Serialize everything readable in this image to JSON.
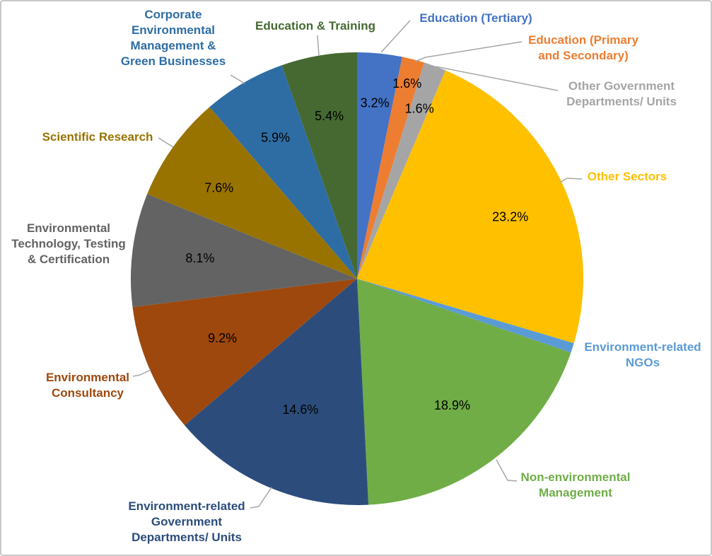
{
  "chart_data": {
    "type": "pie",
    "title": "",
    "orientation": "starts at 12 o'clock, clockwise",
    "legend": "none (direct colored category labels with gray leader lines)",
    "background_color": "#FFFFFF",
    "canvas_border_color": "#C9C9C9",
    "pct_label_color": "#000000",
    "leader_line_color": "#A6A6A6",
    "note": "NGO slice has no percentage data label shown; value estimated as remainder (0.7%)",
    "slices": [
      {
        "label": "Education (Tertiary)",
        "value": 3.2,
        "pct_label": "3.2%",
        "color": "#4472C4"
      },
      {
        "label": "Education (Primary\nand Secondary)",
        "value": 1.6,
        "pct_label": "1.6%",
        "color": "#ED7D31"
      },
      {
        "label": "Other Government\nDepartments/ Units",
        "value": 1.6,
        "pct_label": "1.6%",
        "color": "#A5A5A5"
      },
      {
        "label": "Other Sectors",
        "value": 23.2,
        "pct_label": "23.2%",
        "color": "#FFC000"
      },
      {
        "label": "Environment-related\nNGOs",
        "value": 0.7,
        "pct_label": "",
        "color": "#5B9BD5"
      },
      {
        "label": "Non-environmental\nManagement",
        "value": 18.9,
        "pct_label": "18.9%",
        "color": "#70AD47"
      },
      {
        "label": "Environment-related\nGovernment\nDepartments/ Units",
        "value": 14.6,
        "pct_label": "14.6%",
        "color": "#2C4D7C"
      },
      {
        "label": "Environmental\nConsultancy",
        "value": 9.2,
        "pct_label": "9.2%",
        "color": "#9E480E"
      },
      {
        "label": "Environmental\nTechnology, Testing\n& Certification",
        "value": 8.1,
        "pct_label": "8.1%",
        "color": "#636363"
      },
      {
        "label": "Scientific Research",
        "value": 7.6,
        "pct_label": "7.6%",
        "color": "#997300"
      },
      {
        "label": "Corporate\nEnvironmental\nManagement &\nGreen Businesses",
        "value": 5.9,
        "pct_label": "5.9%",
        "color": "#2E6DA4"
      },
      {
        "label": "Education & Training",
        "value": 5.4,
        "pct_label": "5.4%",
        "color": "#466932"
      }
    ]
  }
}
